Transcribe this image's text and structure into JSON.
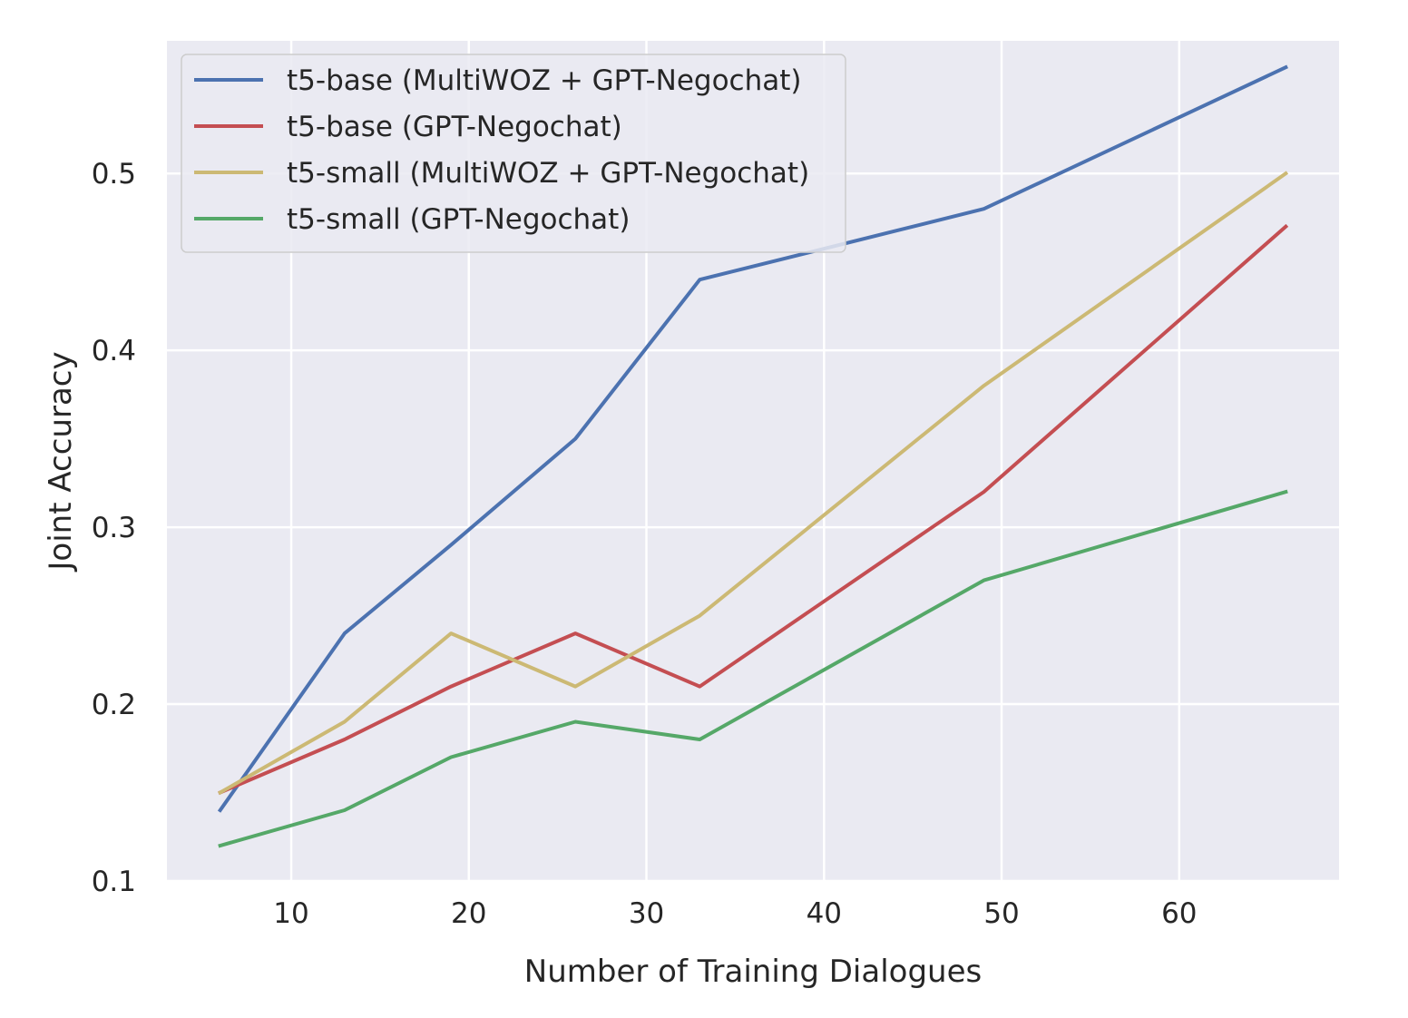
{
  "chart_data": {
    "type": "line",
    "title": "",
    "xlabel": "Number of Training Dialogues",
    "ylabel": "Joint Accuracy",
    "x": [
      6,
      13,
      19,
      26,
      33,
      49,
      66
    ],
    "xlim": [
      3,
      69
    ],
    "ylim": [
      0.1,
      0.575
    ],
    "xticks": [
      10,
      20,
      30,
      40,
      50,
      60
    ],
    "yticks": [
      0.1,
      0.2,
      0.3,
      0.4,
      0.5
    ],
    "xtick_labels": [
      "10",
      "20",
      "30",
      "40",
      "50",
      "60"
    ],
    "ytick_labels": [
      "0.1",
      "0.2",
      "0.3",
      "0.4",
      "0.5"
    ],
    "grid": true,
    "legend_position": "top-left",
    "series": [
      {
        "name": "t5-base (MultiWOZ + GPT-Negochat)",
        "color": "#4c72b0",
        "values": [
          0.14,
          0.24,
          0.29,
          0.35,
          0.44,
          0.48,
          0.56
        ]
      },
      {
        "name": "t5-base (GPT-Negochat)",
        "color": "#c44e52",
        "values": [
          0.15,
          0.18,
          0.21,
          0.24,
          0.21,
          0.32,
          0.47
        ]
      },
      {
        "name": "t5-small (MultiWOZ + GPT-Negochat)",
        "color": "#ccb974",
        "values": [
          0.15,
          0.19,
          0.24,
          0.21,
          0.25,
          0.38,
          0.5
        ]
      },
      {
        "name": "t5-small (GPT-Negochat)",
        "color": "#55a868",
        "values": [
          0.12,
          0.14,
          0.17,
          0.19,
          0.18,
          0.27,
          0.32
        ]
      }
    ]
  }
}
